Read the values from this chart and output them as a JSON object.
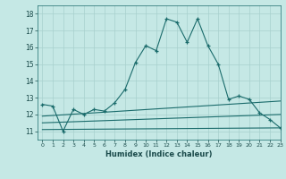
{
  "xlabel": "Humidex (Indice chaleur)",
  "ylabel": "",
  "xlim": [
    -0.5,
    23
  ],
  "ylim": [
    10.5,
    18.5
  ],
  "yticks": [
    11,
    12,
    13,
    14,
    15,
    16,
    17,
    18
  ],
  "xticks": [
    0,
    1,
    2,
    3,
    4,
    5,
    6,
    7,
    8,
    9,
    10,
    11,
    12,
    13,
    14,
    15,
    16,
    17,
    18,
    19,
    20,
    21,
    22,
    23
  ],
  "bg_color": "#c5e8e5",
  "line_color": "#1a6b6b",
  "grid_color": "#a8d0ce",
  "main_line": {
    "x": [
      0,
      1,
      2,
      3,
      4,
      5,
      6,
      7,
      8,
      9,
      10,
      11,
      12,
      13,
      14,
      15,
      16,
      17,
      18,
      19,
      20,
      21,
      22,
      23
    ],
    "y": [
      12.6,
      12.5,
      11.0,
      12.3,
      12.0,
      12.3,
      12.2,
      12.7,
      13.5,
      15.1,
      16.1,
      15.8,
      17.7,
      17.5,
      16.3,
      17.7,
      16.1,
      15.0,
      12.9,
      13.1,
      12.9,
      12.1,
      11.7,
      11.2
    ]
  },
  "flat_lines": [
    {
      "x": [
        0,
        23
      ],
      "y": [
        11.1,
        11.2
      ]
    },
    {
      "x": [
        0,
        23
      ],
      "y": [
        11.5,
        12.0
      ]
    },
    {
      "x": [
        0,
        23
      ],
      "y": [
        11.9,
        12.8
      ]
    }
  ]
}
